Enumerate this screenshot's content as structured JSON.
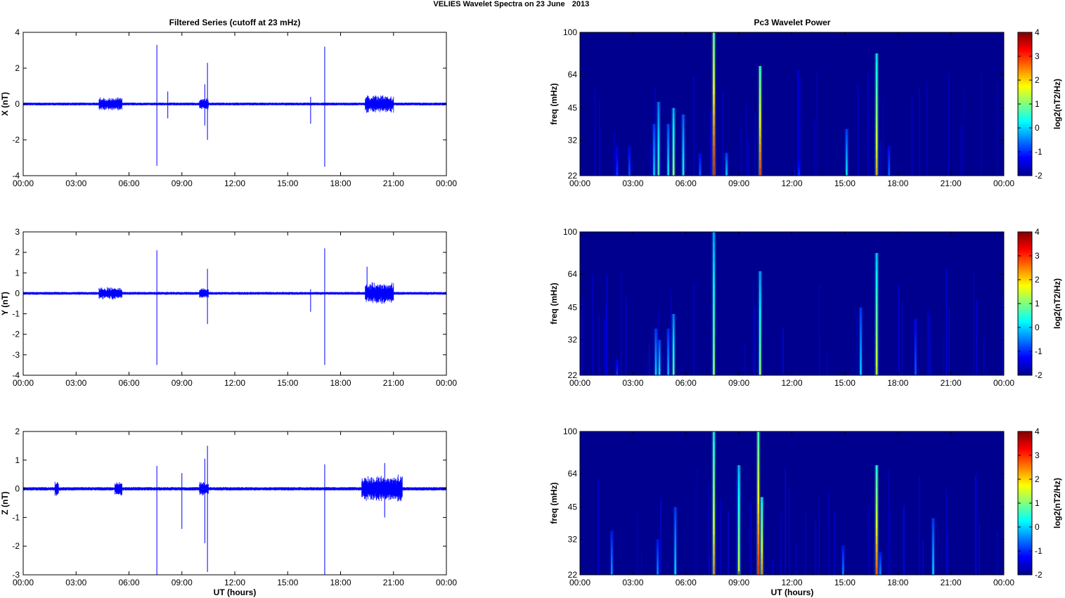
{
  "figure": {
    "suptitle_main": "VELIES Wavelet Spectra on 23 June",
    "suptitle_year": "2013",
    "left_title": "Filtered Series (cutoff at 23 mHz)",
    "right_title": "Pc3 Wavelet Power",
    "xlabel": "UT (hours)"
  },
  "chart_data": [
    {
      "type": "line",
      "component": "X",
      "ylabel": "X (nT)",
      "xlim": [
        0,
        24
      ],
      "ylim": [
        -4,
        4
      ],
      "yticks": [
        "4",
        "2",
        "0",
        "-2",
        "-4"
      ],
      "xticks": [
        "00:00",
        "03:00",
        "06:00",
        "09:00",
        "12:00",
        "15:00",
        "18:00",
        "21:00",
        "00:00"
      ],
      "color": "#0000ff",
      "noise_amplitude": 0.08,
      "bursts": [
        {
          "x0": 4.3,
          "x1": 5.6,
          "amp": 0.3
        },
        {
          "x0": 10.0,
          "x1": 10.5,
          "amp": 0.25
        },
        {
          "x0": 19.4,
          "x1": 21.0,
          "amp": 0.45
        }
      ],
      "spikes": [
        {
          "x": 7.58,
          "high": 3.3,
          "low": -3.45
        },
        {
          "x": 8.2,
          "high": 0.7,
          "low": -0.8
        },
        {
          "x": 10.3,
          "high": 1.1,
          "low": -1.2
        },
        {
          "x": 10.45,
          "high": 2.3,
          "low": -2.0
        },
        {
          "x": 16.3,
          "high": 0.4,
          "low": -1.1
        },
        {
          "x": 17.1,
          "high": 3.2,
          "low": -3.5
        }
      ]
    },
    {
      "type": "line",
      "component": "Y",
      "ylabel": "Y (nT)",
      "xlim": [
        0,
        24
      ],
      "ylim": [
        -4,
        3
      ],
      "yticks": [
        "3",
        "2",
        "1",
        "0",
        "-1",
        "-2",
        "-3",
        "-4"
      ],
      "xticks": [
        "00:00",
        "03:00",
        "06:00",
        "09:00",
        "12:00",
        "15:00",
        "18:00",
        "21:00",
        "00:00"
      ],
      "color": "#0000ff",
      "noise_amplitude": 0.07,
      "bursts": [
        {
          "x0": 4.3,
          "x1": 5.6,
          "amp": 0.25
        },
        {
          "x0": 10.0,
          "x1": 10.5,
          "amp": 0.2
        },
        {
          "x0": 19.4,
          "x1": 21.0,
          "amp": 0.5
        }
      ],
      "spikes": [
        {
          "x": 7.58,
          "high": 2.1,
          "low": -3.5
        },
        {
          "x": 10.45,
          "high": 1.2,
          "low": -1.5
        },
        {
          "x": 16.3,
          "high": 0.2,
          "low": -0.9
        },
        {
          "x": 17.1,
          "high": 2.2,
          "low": -3.5
        },
        {
          "x": 19.5,
          "high": 1.3,
          "low": -0.3
        }
      ]
    },
    {
      "type": "line",
      "component": "Z",
      "ylabel": "Z (nT)",
      "xlim": [
        0,
        24
      ],
      "ylim": [
        -3,
        2
      ],
      "yticks": [
        "2",
        "1",
        "0",
        "-1",
        "-2",
        "-3"
      ],
      "xticks": [
        "00:00",
        "03:00",
        "06:00",
        "09:00",
        "12:00",
        "15:00",
        "18:00",
        "21:00",
        "00:00"
      ],
      "color": "#0000ff",
      "noise_amplitude": 0.06,
      "bursts": [
        {
          "x0": 1.8,
          "x1": 2.0,
          "amp": 0.25
        },
        {
          "x0": 5.2,
          "x1": 5.6,
          "amp": 0.2
        },
        {
          "x0": 10.0,
          "x1": 10.5,
          "amp": 0.2
        },
        {
          "x0": 19.2,
          "x1": 21.5,
          "amp": 0.45
        }
      ],
      "spikes": [
        {
          "x": 7.58,
          "high": 0.8,
          "low": -3.0
        },
        {
          "x": 9.0,
          "high": 0.55,
          "low": -1.4
        },
        {
          "x": 10.3,
          "high": 1.05,
          "low": -1.9
        },
        {
          "x": 10.45,
          "high": 1.5,
          "low": -2.9
        },
        {
          "x": 17.1,
          "high": 0.85,
          "low": -3.0
        },
        {
          "x": 20.5,
          "high": 0.9,
          "low": -1.0
        }
      ]
    },
    {
      "type": "heatmap",
      "component": "X",
      "ylabel": "freq (mHz)",
      "colorbar_label": "log2(nT2/Hz)",
      "xlim": [
        0,
        24
      ],
      "ylim": [
        22,
        100
      ],
      "yticks": [
        "100",
        "64",
        "45",
        "32",
        "22"
      ],
      "xticks": [
        "00:00",
        "03:00",
        "06:00",
        "09:00",
        "12:00",
        "15:00",
        "18:00",
        "21:00",
        "00:00"
      ],
      "clim": [
        -2,
        4
      ],
      "cticks": [
        "4",
        "3",
        "2",
        "1",
        "0",
        "-1",
        "-2"
      ],
      "background": "#00008f",
      "features": [
        {
          "x": 2.1,
          "f": 30,
          "level": -0.8
        },
        {
          "x": 2.8,
          "f": 30,
          "level": -0.6
        },
        {
          "x": 4.2,
          "f": 38,
          "level": 0.2
        },
        {
          "x": 4.45,
          "f": 48,
          "level": 0.9
        },
        {
          "x": 5.0,
          "f": 38,
          "level": 0.4
        },
        {
          "x": 5.3,
          "f": 45,
          "level": 1.6
        },
        {
          "x": 5.85,
          "f": 42,
          "level": 0.6
        },
        {
          "x": 6.8,
          "f": 28,
          "level": -0.5
        },
        {
          "x": 7.58,
          "f": 100,
          "level": 3.6
        },
        {
          "x": 8.3,
          "f": 28,
          "level": 0.2
        },
        {
          "x": 10.2,
          "f": 70,
          "level": 3.2
        },
        {
          "x": 12.4,
          "f": 26,
          "level": -0.8
        },
        {
          "x": 15.1,
          "f": 36,
          "level": 0.3
        },
        {
          "x": 16.8,
          "f": 80,
          "level": 2.4
        },
        {
          "x": 17.5,
          "f": 30,
          "level": -0.5
        }
      ]
    },
    {
      "type": "heatmap",
      "component": "Y",
      "ylabel": "freq (mHz)",
      "colorbar_label": "log2(nT2/Hz)",
      "xlim": [
        0,
        24
      ],
      "ylim": [
        22,
        100
      ],
      "yticks": [
        "100",
        "64",
        "45",
        "32",
        "22"
      ],
      "xticks": [
        "00:00",
        "03:00",
        "06:00",
        "09:00",
        "12:00",
        "15:00",
        "18:00",
        "21:00",
        "00:00"
      ],
      "clim": [
        -2,
        4
      ],
      "cticks": [
        "4",
        "3",
        "2",
        "1",
        "0",
        "-1",
        "-2"
      ],
      "background": "#00008f",
      "features": [
        {
          "x": 2.1,
          "f": 26,
          "level": -0.8
        },
        {
          "x": 4.3,
          "f": 36,
          "level": 0.2
        },
        {
          "x": 4.5,
          "f": 32,
          "level": 0.4
        },
        {
          "x": 5.0,
          "f": 36,
          "level": 0.0
        },
        {
          "x": 5.3,
          "f": 42,
          "level": 1.0
        },
        {
          "x": 7.58,
          "f": 100,
          "level": 1.5
        },
        {
          "x": 10.2,
          "f": 66,
          "level": 1.4
        },
        {
          "x": 15.9,
          "f": 45,
          "level": 0.2
        },
        {
          "x": 16.8,
          "f": 80,
          "level": 2.0
        },
        {
          "x": 19.0,
          "f": 40,
          "level": -0.6
        }
      ]
    },
    {
      "type": "heatmap",
      "component": "Z",
      "ylabel": "freq (mHz)",
      "colorbar_label": "log2(nT2/Hz)",
      "xlim": [
        0,
        24
      ],
      "ylim": [
        22,
        100
      ],
      "yticks": [
        "100",
        "64",
        "45",
        "32",
        "22"
      ],
      "xticks": [
        "00:00",
        "03:00",
        "06:00",
        "09:00",
        "12:00",
        "15:00",
        "18:00",
        "21:00",
        "00:00"
      ],
      "clim": [
        -2,
        4
      ],
      "cticks": [
        "4",
        "3",
        "2",
        "1",
        "0",
        "-1",
        "-2"
      ],
      "background": "#00008f",
      "features": [
        {
          "x": 1.8,
          "f": 35,
          "level": -0.2
        },
        {
          "x": 4.4,
          "f": 32,
          "level": -0.3
        },
        {
          "x": 5.4,
          "f": 45,
          "level": 0.2
        },
        {
          "x": 7.58,
          "f": 100,
          "level": 2.6
        },
        {
          "x": 9.0,
          "f": 70,
          "level": 1.8
        },
        {
          "x": 10.1,
          "f": 100,
          "level": 3.4
        },
        {
          "x": 10.3,
          "f": 50,
          "level": 2.6
        },
        {
          "x": 14.9,
          "f": 30,
          "level": -0.3
        },
        {
          "x": 16.8,
          "f": 70,
          "level": 3.0
        },
        {
          "x": 17.0,
          "f": 28,
          "level": -0.2
        },
        {
          "x": 20.0,
          "f": 40,
          "level": 0.2
        }
      ]
    }
  ]
}
